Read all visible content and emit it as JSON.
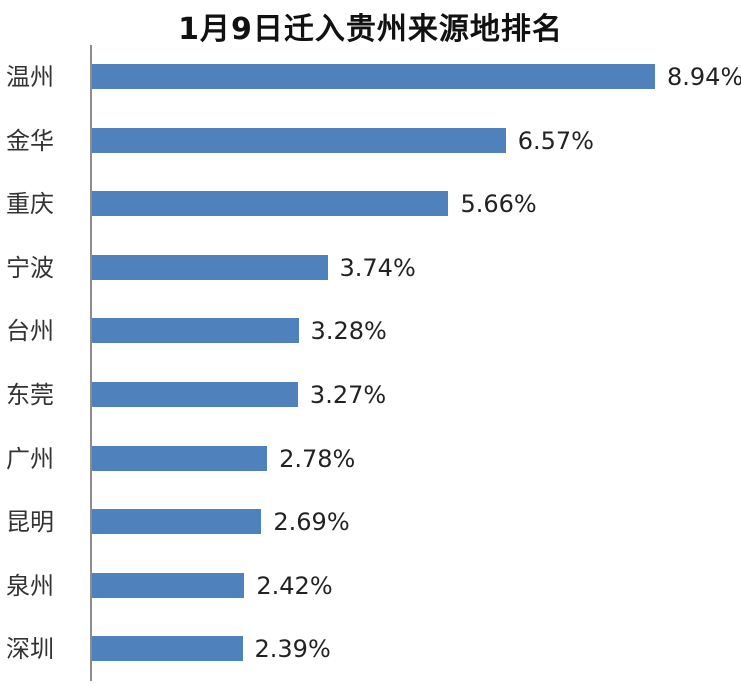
{
  "chart_data": {
    "type": "bar",
    "orientation": "horizontal",
    "title": "1月9日迁入贵州来源地排名",
    "xlabel": "",
    "ylabel": "",
    "categories": [
      "温州",
      "金华",
      "重庆",
      "宁波",
      "台州",
      "东莞",
      "广州",
      "昆明",
      "泉州",
      "深圳"
    ],
    "values": [
      8.94,
      6.57,
      5.66,
      3.74,
      3.28,
      3.27,
      2.78,
      2.69,
      2.42,
      2.39
    ],
    "labels": [
      "8.94%",
      "6.57%",
      "5.66%",
      "3.74%",
      "3.28%",
      "3.27%",
      "2.78%",
      "2.69%",
      "2.42%",
      "2.39%"
    ],
    "unit": "%",
    "grid": false,
    "legend": null,
    "bar_color": "#4f81bd"
  }
}
